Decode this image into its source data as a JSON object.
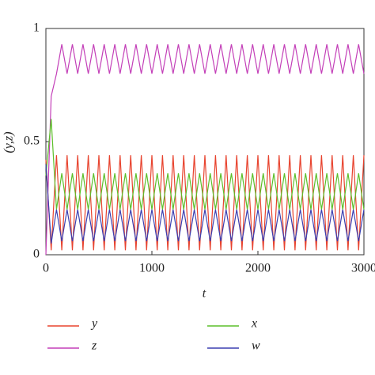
{
  "chart_data": {
    "type": "line",
    "xlabel": "t",
    "ylabel": "(y,z)",
    "x": [
      0,
      50,
      100,
      150,
      200,
      250,
      300,
      350,
      400,
      450,
      500,
      550,
      600,
      650,
      700,
      750,
      800,
      850,
      900,
      950,
      1000,
      1050,
      1100,
      1150,
      1200,
      1250,
      1300,
      1350,
      1400,
      1450,
      1500,
      1550,
      1600,
      1650,
      1700,
      1750,
      1800,
      1850,
      1900,
      1950,
      2000,
      2050,
      2100,
      2150,
      2200,
      2250,
      2300,
      2350,
      2400,
      2450,
      2500,
      2550,
      2600,
      2650,
      2700,
      2750,
      2800,
      2850,
      2900,
      2950,
      3000
    ],
    "series": [
      {
        "name": "y",
        "color": "#e8432e",
        "values": [
          0.42,
          0.02,
          0.44,
          0.02,
          0.44,
          0.02,
          0.44,
          0.02,
          0.44,
          0.02,
          0.44,
          0.02,
          0.44,
          0.02,
          0.44,
          0.02,
          0.44,
          0.02,
          0.44,
          0.02,
          0.44,
          0.02,
          0.44,
          0.02,
          0.44,
          0.02,
          0.44,
          0.02,
          0.44,
          0.02,
          0.44,
          0.02,
          0.44,
          0.02,
          0.44,
          0.02,
          0.44,
          0.02,
          0.44,
          0.02,
          0.44,
          0.02,
          0.44,
          0.02,
          0.44,
          0.02,
          0.44,
          0.02,
          0.44,
          0.02,
          0.44,
          0.02,
          0.44,
          0.02,
          0.44,
          0.02,
          0.44,
          0.02,
          0.44,
          0.02,
          0.44
        ]
      },
      {
        "name": "z",
        "color": "#c33fb8",
        "values": [
          0,
          0.7,
          0.8,
          0.93,
          0.8,
          0.93,
          0.8,
          0.93,
          0.8,
          0.93,
          0.8,
          0.93,
          0.8,
          0.93,
          0.8,
          0.93,
          0.8,
          0.93,
          0.8,
          0.93,
          0.8,
          0.93,
          0.8,
          0.93,
          0.8,
          0.93,
          0.8,
          0.93,
          0.8,
          0.93,
          0.8,
          0.93,
          0.8,
          0.93,
          0.8,
          0.93,
          0.8,
          0.93,
          0.8,
          0.93,
          0.8,
          0.93,
          0.8,
          0.93,
          0.8,
          0.93,
          0.8,
          0.93,
          0.8,
          0.93,
          0.8,
          0.93,
          0.8,
          0.93,
          0.8,
          0.93,
          0.8,
          0.93,
          0.8,
          0.93,
          0.8
        ]
      },
      {
        "name": "x",
        "color": "#5cbf2a",
        "values": [
          0.35,
          0.6,
          0.2,
          0.36,
          0.2,
          0.36,
          0.2,
          0.36,
          0.2,
          0.36,
          0.2,
          0.36,
          0.2,
          0.36,
          0.2,
          0.36,
          0.2,
          0.36,
          0.2,
          0.36,
          0.2,
          0.36,
          0.2,
          0.36,
          0.2,
          0.36,
          0.2,
          0.36,
          0.2,
          0.36,
          0.2,
          0.36,
          0.2,
          0.36,
          0.2,
          0.36,
          0.2,
          0.36,
          0.2,
          0.36,
          0.2,
          0.36,
          0.2,
          0.36,
          0.2,
          0.36,
          0.2,
          0.36,
          0.2,
          0.36,
          0.2,
          0.36,
          0.2,
          0.36,
          0.2,
          0.36,
          0.2,
          0.36,
          0.2,
          0.36,
          0.2
        ]
      },
      {
        "name": "w",
        "color": "#3b3fb0",
        "values": [
          0.4,
          0.05,
          0.2,
          0.06,
          0.2,
          0.06,
          0.2,
          0.06,
          0.2,
          0.06,
          0.2,
          0.06,
          0.2,
          0.06,
          0.2,
          0.06,
          0.2,
          0.06,
          0.2,
          0.06,
          0.2,
          0.06,
          0.2,
          0.06,
          0.2,
          0.06,
          0.2,
          0.06,
          0.2,
          0.06,
          0.2,
          0.06,
          0.2,
          0.06,
          0.2,
          0.06,
          0.2,
          0.06,
          0.2,
          0.06,
          0.2,
          0.06,
          0.2,
          0.06,
          0.2,
          0.06,
          0.2,
          0.06,
          0.2,
          0.06,
          0.2,
          0.06,
          0.2,
          0.06,
          0.2,
          0.06,
          0.2,
          0.06,
          0.2,
          0.06,
          0.2
        ]
      }
    ],
    "xlim": [
      0,
      3000
    ],
    "xticks": [
      0,
      1000,
      2000,
      3000
    ],
    "ylim": [
      0,
      1
    ],
    "yticks": [
      0,
      0.5,
      1
    ]
  }
}
